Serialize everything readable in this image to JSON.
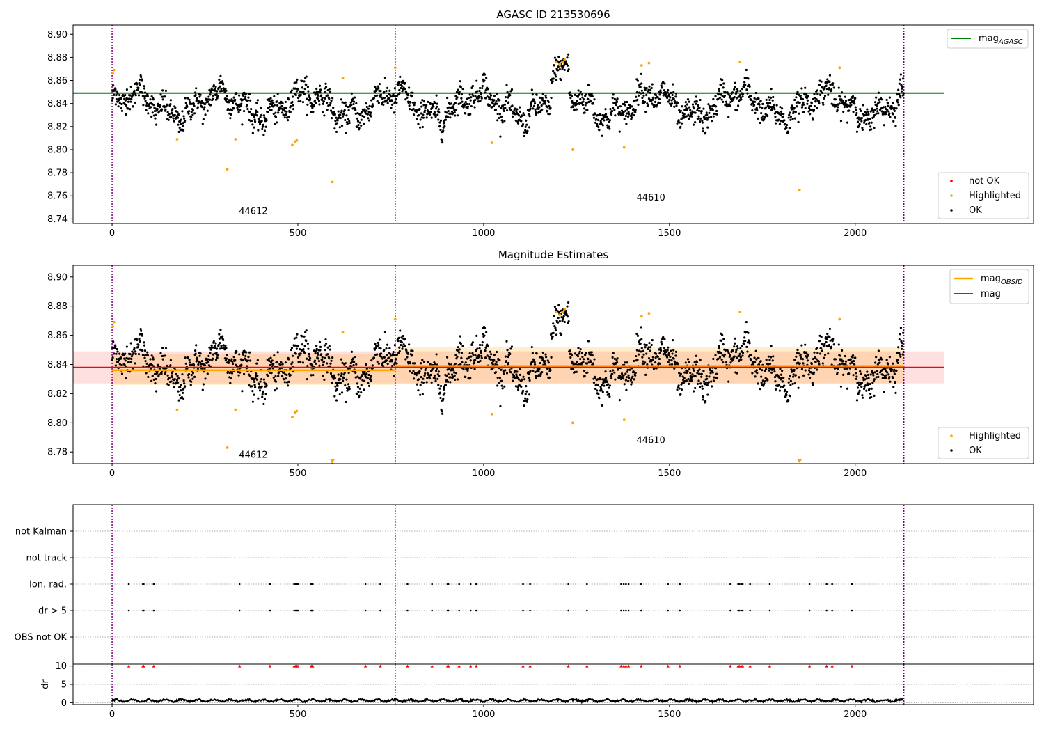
{
  "chart_data": [
    {
      "id": "agasc",
      "type": "scatter",
      "title": "AGASC ID 213530696",
      "xlabel": "",
      "ylabel": "",
      "xlim": [
        -105,
        2480
      ],
      "ylim": [
        8.736,
        8.908
      ],
      "x_ticks": [
        "0",
        "500",
        "1000",
        "1500",
        "2000"
      ],
      "y_ticks": [
        "8.74",
        "8.76",
        "8.78",
        "8.80",
        "8.82",
        "8.84",
        "8.86",
        "8.88",
        "8.90"
      ],
      "observation_boundaries": [
        0,
        762,
        2131
      ],
      "obsid_labels": [
        {
          "text": "44612",
          "x": 380,
          "y": 8.744
        },
        {
          "text": "44610",
          "x": 1450,
          "y": 8.756
        }
      ],
      "reference_line": {
        "name": "mag_AGASC",
        "y": 8.849,
        "x_range": [
          -105,
          2240
        ],
        "color": "#008000"
      },
      "series": [
        {
          "name": "not OK",
          "color": "#ff0000",
          "points": []
        },
        {
          "name": "Highlighted",
          "color": "#ffa500",
          "points": [
            [
              2,
              8.866
            ],
            [
              5,
              8.869
            ],
            [
              175,
              8.809
            ],
            [
              310,
              8.783
            ],
            [
              332,
              8.809
            ],
            [
              485,
              8.804
            ],
            [
              492,
              8.807
            ],
            [
              497,
              8.808
            ],
            [
              593,
              8.772
            ],
            [
              621,
              8.862
            ],
            [
              762,
              8.871
            ],
            [
              1022,
              8.806
            ],
            [
              1195,
              8.876
            ],
            [
              1205,
              8.874
            ],
            [
              1212,
              8.876
            ],
            [
              1218,
              8.878
            ],
            [
              1240,
              8.8
            ],
            [
              1378,
              8.802
            ],
            [
              1425,
              8.873
            ],
            [
              1445,
              8.875
            ],
            [
              1690,
              8.876
            ],
            [
              1850,
              8.765
            ],
            [
              1958,
              8.871
            ]
          ]
        },
        {
          "name": "OK",
          "color": "#000000",
          "n_points": 2131,
          "mean_level": 8.839
        }
      ],
      "legend_top": {
        "position": "top-right",
        "entries": [
          {
            "label": "mag",
            "subscript": "AGASC",
            "color": "#008000"
          }
        ]
      },
      "legend_bottom": {
        "position": "lower-right",
        "entries": [
          {
            "label": "not OK",
            "color": "#ff0000"
          },
          {
            "label": "Highlighted",
            "color": "#ffa500"
          },
          {
            "label": "OK",
            "color": "#000000"
          }
        ]
      }
    },
    {
      "id": "estimates",
      "type": "scatter",
      "title": "Magnitude Estimates",
      "xlabel": "",
      "ylabel": "",
      "xlim": [
        -105,
        2480
      ],
      "ylim": [
        8.772,
        8.908
      ],
      "x_ticks": [
        "0",
        "500",
        "1000",
        "1500",
        "2000"
      ],
      "y_ticks": [
        "8.78",
        "8.80",
        "8.82",
        "8.84",
        "8.86",
        "8.88",
        "8.90"
      ],
      "observation_boundaries": [
        0,
        762,
        2131
      ],
      "obsid_labels": [
        {
          "text": "44612",
          "x": 380,
          "y": 8.776
        },
        {
          "text": "44610",
          "x": 1450,
          "y": 8.786
        }
      ],
      "mag_line": {
        "name": "mag",
        "y": 8.838,
        "band": [
          8.827,
          8.849
        ],
        "x_range": [
          -105,
          2240
        ],
        "color": "#ff0000"
      },
      "mag_obsid": [
        {
          "obsid": "44612",
          "x_range": [
            0,
            762
          ],
          "y": 8.836,
          "band": [
            8.826,
            8.847
          ]
        },
        {
          "obsid": "44610",
          "x_range": [
            762,
            2131
          ],
          "y": 8.839,
          "band": [
            8.827,
            8.852
          ]
        }
      ],
      "offscale_markers": [
        {
          "x": 593,
          "direction": "down"
        },
        {
          "x": 1850,
          "direction": "down"
        }
      ],
      "legend_top": {
        "position": "top-right",
        "entries": [
          {
            "label": "mag",
            "subscript": "OBSID",
            "color": "#ffa500"
          },
          {
            "label": "mag",
            "subscript": "",
            "color": "#ff0000"
          }
        ]
      },
      "legend_bottom": {
        "position": "lower-right",
        "entries": [
          {
            "label": "Highlighted",
            "color": "#ffa500"
          },
          {
            "label": "OK",
            "color": "#000000"
          }
        ]
      }
    },
    {
      "id": "flags",
      "type": "scatter",
      "title": "",
      "xlim": [
        -105,
        2480
      ],
      "y_categories": [
        "not Kalman",
        "not track",
        "Ion. rad.",
        "dr > 5",
        "OBS not OK"
      ],
      "observation_boundaries": [
        0,
        762,
        2131
      ],
      "flag_times": [
        45,
        83,
        85,
        112,
        343,
        425,
        490,
        494,
        497,
        500,
        536,
        538,
        540,
        682,
        722,
        795,
        861,
        903,
        905,
        934,
        965,
        980,
        1106,
        1125,
        1228,
        1278,
        1370,
        1377,
        1383,
        1390,
        1424,
        1496,
        1528,
        1664,
        1685,
        1688,
        1693,
        1697,
        1717,
        1770,
        1877,
        1923,
        1938,
        1991
      ]
    },
    {
      "id": "dr",
      "type": "line",
      "ylabel": "dr",
      "xlim": [
        -105,
        2480
      ],
      "ylim": [
        -0.5,
        10.5
      ],
      "y_ticks": [
        "0",
        "5",
        "10"
      ],
      "x_ticks": [
        "0",
        "500",
        "1000",
        "1500",
        "2000"
      ],
      "observation_boundaries": [
        0,
        762,
        2131
      ],
      "typical_value": 0.6,
      "flag_marker_y": 10
    }
  ],
  "colors": {
    "ok": "#000000",
    "highlighted": "#ffa500",
    "not_ok": "#ff0000",
    "mag_agasc": "#008000",
    "mag": "#ff0000",
    "mag_obsid": "#ffa500",
    "boundary": "#800080"
  }
}
